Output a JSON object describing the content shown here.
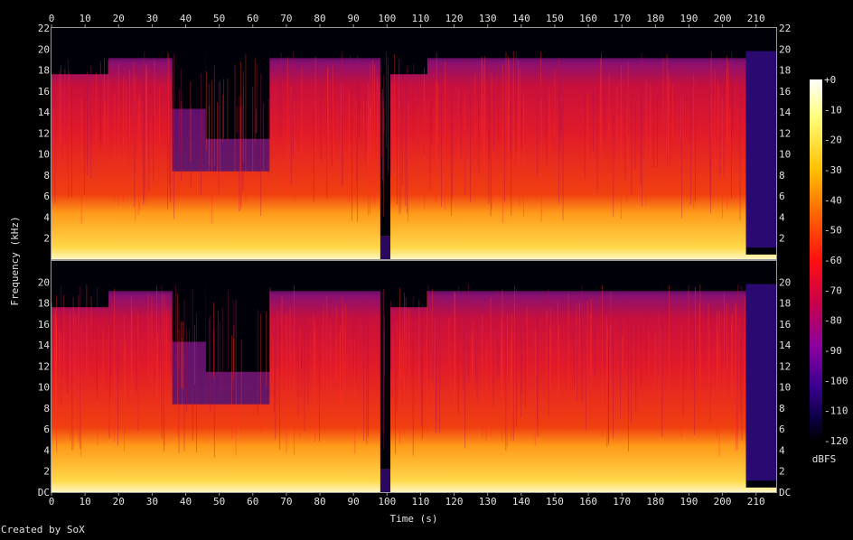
{
  "chart_data": {
    "type": "heatmap",
    "xlabel": "Time (s)",
    "ylabel": "Frequency (kHz)",
    "credit": "Created by SoX",
    "colorbar_label": "dBFS",
    "xlim": [
      0,
      216
    ],
    "x_ticks": [
      "0",
      "10",
      "20",
      "30",
      "40",
      "50",
      "60",
      "70",
      "80",
      "90",
      "100",
      "110",
      "120",
      "130",
      "140",
      "150",
      "160",
      "170",
      "180",
      "190",
      "200",
      "210"
    ],
    "y_ticks_top": [
      "2",
      "4",
      "6",
      "8",
      "10",
      "12",
      "14",
      "16",
      "18",
      "20",
      "22"
    ],
    "y_ticks_bottom": [
      "DC",
      "2",
      "4",
      "6",
      "8",
      "10",
      "12",
      "14",
      "16",
      "18",
      "20"
    ],
    "colorbar_ticks": [
      "+0",
      "-10",
      "-20",
      "-30",
      "-40",
      "-50",
      "-60",
      "-70",
      "-80",
      "-90",
      "-100",
      "-110",
      "-120"
    ],
    "zlim": [
      -120,
      0
    ],
    "channels": [
      {
        "name": "",
        "ylim_khz": [
          0,
          22
        ]
      },
      {
        "name": "",
        "ylim_khz": [
          0,
          22
        ]
      }
    ],
    "segments": [
      {
        "t": [
          0,
          17
        ],
        "level": "medium"
      },
      {
        "t": [
          17,
          36
        ],
        "level": "high"
      },
      {
        "t": [
          36,
          46
        ],
        "level": "fading"
      },
      {
        "t": [
          46,
          65
        ],
        "level": "quiet"
      },
      {
        "t": [
          65,
          98
        ],
        "level": "high"
      },
      {
        "t": [
          98,
          101
        ],
        "level": "gap"
      },
      {
        "t": [
          101,
          112
        ],
        "level": "medium"
      },
      {
        "t": [
          112,
          182
        ],
        "level": "high"
      },
      {
        "t": [
          182,
          207
        ],
        "level": "high"
      },
      {
        "t": [
          207,
          216
        ],
        "level": "silent"
      }
    ]
  }
}
